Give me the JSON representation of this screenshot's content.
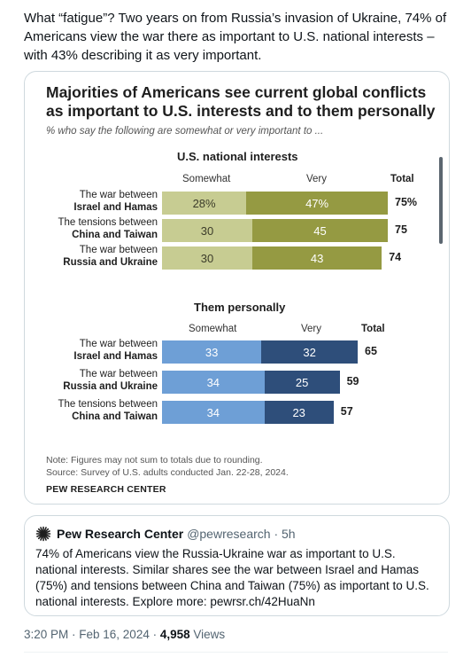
{
  "tweet": {
    "text": "What “fatigue”? Two years on from Russia’s invasion of Ukraine, 74% of Americans view the war there as important to U.S. national interests – with 43% describing it as very important."
  },
  "card": {
    "title": "Majorities of Americans see current global conflicts as important to U.S. interests and to them personally",
    "subtitle": "% who say the following are somewhat or very important to ...",
    "note1": "Note: Figures may not sum to totals due to rounding.",
    "note2": "Source: Survey of U.S. adults conducted Jan. 22-28, 2024.",
    "brand": "PEW RESEARCH CENTER"
  },
  "chart_data": [
    {
      "type": "bar",
      "title": "U.S. national interests",
      "legend": [
        "Somewhat",
        "Very",
        "Total"
      ],
      "colors": {
        "Somewhat": "#c7cc92",
        "Very": "#959a42"
      },
      "rows": [
        {
          "line1": "The war between",
          "line2": "Israel and Hamas",
          "somewhat": 28,
          "very": 47,
          "total": 75,
          "somewhat_label": "28%",
          "very_label": "47%",
          "total_label": "75%"
        },
        {
          "line1": "The tensions between",
          "line2": "China and Taiwan",
          "somewhat": 30,
          "very": 45,
          "total": 75,
          "somewhat_label": "30",
          "very_label": "45",
          "total_label": "75"
        },
        {
          "line1": "The war between",
          "line2": "Russia and Ukraine",
          "somewhat": 30,
          "very": 43,
          "total": 74,
          "somewhat_label": "30",
          "very_label": "43",
          "total_label": "74"
        }
      ]
    },
    {
      "type": "bar",
      "title": "Them personally",
      "legend": [
        "Somewhat",
        "Very",
        "Total"
      ],
      "colors": {
        "Somewhat": "#6e9fd6",
        "Very": "#2e4e7a"
      },
      "rows": [
        {
          "line1": "The war between",
          "line2": "Israel and Hamas",
          "somewhat": 33,
          "very": 32,
          "total": 65,
          "somewhat_label": "33",
          "very_label": "32",
          "total_label": "65"
        },
        {
          "line1": "The war between",
          "line2": "Russia and Ukraine",
          "somewhat": 34,
          "very": 25,
          "total": 59,
          "somewhat_label": "34",
          "very_label": "25",
          "total_label": "59"
        },
        {
          "line1": "The tensions between",
          "line2": "China and Taiwan",
          "somewhat": 34,
          "very": 23,
          "total": 57,
          "somewhat_label": "34",
          "very_label": "23",
          "total_label": "57"
        }
      ]
    }
  ],
  "quote": {
    "icon": "pew-logo-icon",
    "name": "Pew Research Center",
    "handle": "@pewresearch · 5h",
    "text": "74% of Americans view the Russia-Ukraine war as important to U.S. national interests. Similar shares see the war between Israel and Hamas (75%) and tensions between China and Taiwan (75%) as important to U.S. national interests. Explore more: pewrsr.ch/42HuaNn"
  },
  "meta": {
    "timestamp": "3:20 PM · Feb 16, 2024 · ",
    "views_count": "4,958",
    "views_label": " Views"
  }
}
